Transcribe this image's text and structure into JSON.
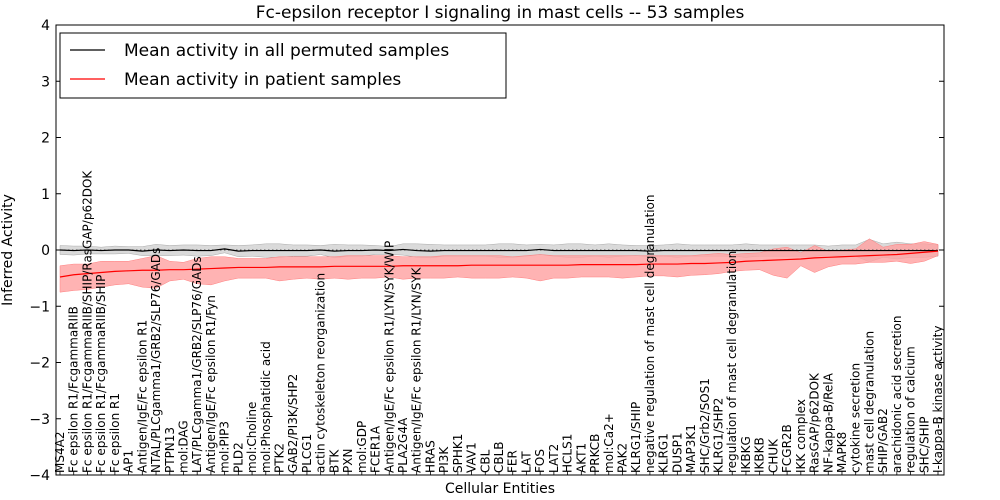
{
  "chart_data": {
    "type": "line",
    "title": "Fc-epsilon receptor I signaling in mast cells -- 53 samples",
    "xlabel": "Cellular Entities",
    "ylabel": "Inferred Activity",
    "ylim": [
      -4,
      4
    ],
    "yticks": [
      -4,
      -3,
      -2,
      -1,
      0,
      1,
      2,
      3,
      4
    ],
    "legend_position": "upper-left",
    "categories": [
      "MS4A2",
      "Fc epsilon R1/FcgammaRIIB",
      "Fc epsilon R1/FcgammaRIIB/SHIP/RasGAP/p62DOK",
      "Fc epsilon R1/FcgammaRIIB/SHIP",
      "Fc epsilon R1",
      "AP1",
      "Antigen/IgE/Fc epsilon R1",
      "NTAL/PLCgamma1/GRB2/SLP76/GADs",
      "PTPN13",
      "mol:DAG",
      "LAT/PLCgamma1/GRB2/SLP76/GADs",
      "Antigen/IgE/Fc epsilon R1/Fyn",
      "mol:PIP3",
      "PLD2",
      "mol:Choline",
      "mol:Phosphatidic acid",
      "PTK2",
      "GAB2/PI3K/SHP2",
      "PLCG1",
      "actin cytoskeleton reorganization",
      "BTK",
      "PXN",
      "mol:GDP",
      "FCER1A",
      "Antigen/IgE/Fc epsilon R1/LYN/SYK/WIP",
      "PLA2G4A",
      "Antigen/IgE/Fc epsilon R1/LYN/SYK",
      "HRAS",
      "PI3K",
      "SPHK1",
      "VAV1",
      "CBL",
      "CBLB",
      "FER",
      "LAT",
      "FOS",
      "LAT2",
      "HCLS1",
      "AKT1",
      "PRKCB",
      "mol:Ca2+",
      "PAK2",
      "KLRG1/SHIP",
      "negative regulation of mast cell degranulation",
      "KLRG1",
      "DUSP1",
      "MAP3K1",
      "SHC/Grb2/SOS1",
      "KLRG1/SHP2",
      "regulation of mast cell degranulation",
      "IKBKG",
      "IKBKB",
      "CHUK",
      "FCGR2B",
      "IKK complex",
      "RasGAP/p62DOK",
      "NF-kappa-B/RelA",
      "MAPK8",
      "cytokine secretion",
      "mast cell degranulation",
      "SHIP/GAB2",
      "arachidonic acid secretion",
      "regulation of calcium",
      "SHC/SHIP",
      "I-kappa-B kinase activity"
    ],
    "series": [
      {
        "name": "Mean activity in all permuted samples",
        "color": "#000000",
        "values": [
          0,
          -0.01,
          0,
          -0.01,
          0,
          0,
          -0.02,
          0,
          -0.01,
          0,
          -0.01,
          -0.01,
          0.02,
          -0.02,
          -0.01,
          -0.01,
          -0.01,
          -0.01,
          -0.01,
          0,
          -0.02,
          -0.01,
          -0.01,
          0,
          -0.01,
          0.01,
          -0.01,
          -0.02,
          -0.01,
          -0.01,
          -0.01,
          -0.01,
          -0.01,
          -0.01,
          -0.01,
          0.01,
          -0.01,
          -0.01,
          -0.01,
          -0.01,
          -0.01,
          -0.01,
          -0.01,
          -0.02,
          -0.01,
          -0.01,
          -0.01,
          -0.01,
          -0.01,
          -0.01,
          -0.01,
          -0.01,
          -0.01,
          -0.01,
          -0.01,
          -0.01,
          -0.01,
          -0.01,
          -0.01,
          -0.01,
          -0.01,
          -0.01,
          -0.01,
          -0.01,
          -0.01
        ],
        "band_half_width": [
          0.08,
          0.08,
          0.07,
          0.06,
          0.07,
          0.06,
          0.08,
          0.1,
          0.09,
          0.09,
          0.1,
          0.09,
          0.07,
          0.1,
          0.1,
          0.12,
          0.12,
          0.1,
          0.1,
          0.08,
          0.12,
          0.1,
          0.1,
          0.08,
          0.07,
          0.1,
          0.12,
          0.12,
          0.1,
          0.1,
          0.1,
          0.1,
          0.12,
          0.12,
          0.1,
          0.09,
          0.1,
          0.12,
          0.12,
          0.1,
          0.12,
          0.1,
          0.09,
          0.1,
          0.1,
          0.12,
          0.1,
          0.1,
          0.1,
          0.1,
          0.12,
          0.1,
          0.1,
          0.1,
          0.1,
          0.1,
          0.08,
          0.1,
          0.1,
          0.2,
          0.12,
          0.15,
          0.12,
          0.12,
          0.1
        ]
      },
      {
        "name": "Mean activity in patient samples",
        "color": "#ff0000",
        "values": [
          -0.48,
          -0.44,
          -0.42,
          -0.4,
          -0.38,
          -0.37,
          -0.36,
          -0.36,
          -0.35,
          -0.35,
          -0.34,
          -0.33,
          -0.32,
          -0.31,
          -0.31,
          -0.31,
          -0.3,
          -0.3,
          -0.3,
          -0.3,
          -0.29,
          -0.29,
          -0.29,
          -0.29,
          -0.29,
          -0.28,
          -0.28,
          -0.28,
          -0.28,
          -0.28,
          -0.27,
          -0.27,
          -0.27,
          -0.27,
          -0.27,
          -0.27,
          -0.27,
          -0.27,
          -0.26,
          -0.26,
          -0.26,
          -0.26,
          -0.26,
          -0.25,
          -0.25,
          -0.25,
          -0.24,
          -0.24,
          -0.23,
          -0.22,
          -0.2,
          -0.19,
          -0.18,
          -0.17,
          -0.16,
          -0.14,
          -0.13,
          -0.12,
          -0.11,
          -0.1,
          -0.09,
          -0.08,
          -0.06,
          -0.04,
          -0.02
        ],
        "lower": [
          -0.75,
          -0.72,
          -0.7,
          -0.66,
          -0.62,
          -0.6,
          -0.66,
          -0.68,
          -0.55,
          -0.52,
          -0.6,
          -0.62,
          -0.55,
          -0.5,
          -0.5,
          -0.5,
          -0.55,
          -0.52,
          -0.5,
          -0.52,
          -0.5,
          -0.52,
          -0.5,
          -0.5,
          -0.48,
          -0.52,
          -0.5,
          -0.5,
          -0.5,
          -0.48,
          -0.5,
          -0.5,
          -0.5,
          -0.48,
          -0.5,
          -0.55,
          -0.5,
          -0.5,
          -0.48,
          -0.48,
          -0.48,
          -0.5,
          -0.48,
          -0.46,
          -0.46,
          -0.48,
          -0.45,
          -0.44,
          -0.42,
          -0.38,
          -0.36,
          -0.35,
          -0.45,
          -0.5,
          -0.28,
          -0.4,
          -0.3,
          -0.25,
          -0.25,
          -0.22,
          -0.22,
          -0.2,
          -0.24,
          -0.2,
          -0.1
        ],
        "upper": [
          -0.28,
          -0.25,
          -0.25,
          -0.2,
          -0.2,
          -0.2,
          -0.15,
          -0.1,
          -0.2,
          -0.22,
          -0.15,
          -0.12,
          -0.12,
          -0.15,
          -0.15,
          -0.15,
          -0.12,
          -0.12,
          -0.12,
          -0.12,
          -0.12,
          -0.1,
          -0.1,
          -0.1,
          -0.1,
          -0.12,
          -0.12,
          -0.12,
          -0.1,
          -0.1,
          -0.1,
          -0.1,
          -0.1,
          -0.12,
          -0.1,
          -0.08,
          -0.1,
          -0.1,
          -0.1,
          -0.1,
          -0.1,
          -0.1,
          -0.1,
          -0.1,
          -0.1,
          -0.1,
          -0.1,
          -0.08,
          -0.06,
          -0.08,
          -0.06,
          -0.05,
          0.02,
          0.05,
          -0.05,
          0.08,
          -0.02,
          0.0,
          0.02,
          0.2,
          0.05,
          0.1,
          0.1,
          0.15,
          0.1
        ]
      }
    ]
  },
  "colors": {
    "permuted_band": "#d3d3d3",
    "patient_band": "#ffa0a0",
    "zero_line": "#555555"
  }
}
